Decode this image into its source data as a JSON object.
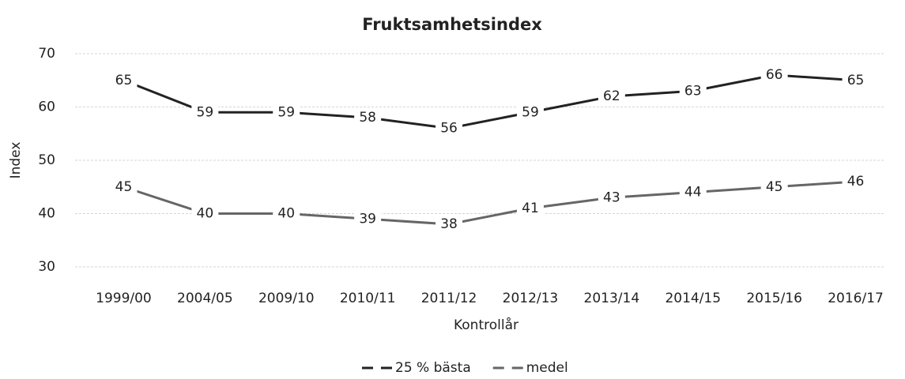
{
  "chart_data": {
    "type": "line",
    "title": "Fruktsamhetsindex",
    "x_label": "Kontrollår",
    "y_label": "Index",
    "categories": [
      "1999/00",
      "2004/05",
      "2009/10",
      "2010/11",
      "2011/12",
      "2012/13",
      "2013/14",
      "2014/15",
      "2015/16",
      "2016/17"
    ],
    "series": [
      {
        "name": "25 % bästa",
        "color": "#222222",
        "values": [
          65,
          59,
          59,
          58,
          56,
          59,
          62,
          63,
          66,
          65
        ]
      },
      {
        "name": "medel",
        "color": "#666666",
        "values": [
          45,
          40,
          40,
          39,
          38,
          41,
          43,
          44,
          45,
          46
        ]
      }
    ],
    "ylim": [
      30,
      70
    ],
    "yticks": [
      30,
      40,
      50,
      60,
      70
    ],
    "grid": true,
    "legend": "bottom"
  }
}
